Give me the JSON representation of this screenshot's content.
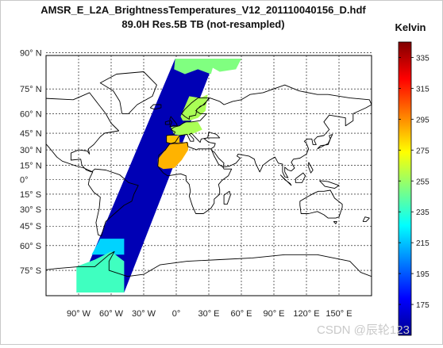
{
  "chart_data": {
    "type": "heatmap",
    "title_lines": [
      "AMSR_E_L2A_BrightnessTemperatures_V12_201110040156_D.hdf",
      "89.0H Res.5B TB (not-resampled)"
    ],
    "map_projection": "Miller-like cylindrical world map with coastlines",
    "lon_range": [
      -120,
      180
    ],
    "lat_range": [
      -90,
      90
    ],
    "grid": true,
    "x_ticks": [
      {
        "value": -90,
        "label": "90° W"
      },
      {
        "value": -60,
        "label": "60° W"
      },
      {
        "value": -30,
        "label": "30° W"
      },
      {
        "value": 0,
        "label": "0°"
      },
      {
        "value": 30,
        "label": "30° E"
      },
      {
        "value": 60,
        "label": "60° E"
      },
      {
        "value": 90,
        "label": "90° E"
      },
      {
        "value": 120,
        "label": "120° E"
      },
      {
        "value": 150,
        "label": "150° E"
      }
    ],
    "y_ticks": [
      {
        "value": 90,
        "label": "90° N"
      },
      {
        "value": 75,
        "label": "75° N"
      },
      {
        "value": 60,
        "label": "60° N"
      },
      {
        "value": 45,
        "label": "45° N"
      },
      {
        "value": 30,
        "label": "30° N"
      },
      {
        "value": 15,
        "label": "15° N"
      },
      {
        "value": 0,
        "label": "0°"
      },
      {
        "value": -15,
        "label": "15° S"
      },
      {
        "value": -30,
        "label": "30° S"
      },
      {
        "value": -45,
        "label": "45° S"
      },
      {
        "value": -60,
        "label": "60° S"
      },
      {
        "value": -75,
        "label": "75° S"
      }
    ],
    "colorbar": {
      "label": "Kelvin",
      "colormap": "jet",
      "range": [
        155,
        345
      ],
      "ticks": [
        175,
        195,
        215,
        235,
        255,
        275,
        295,
        315,
        335
      ]
    },
    "swath": {
      "description": "Single descending AMSR-E swath crossing Atlantic/Europe/Africa",
      "corners_lonlat": {
        "top_left": [
          -1,
          88
        ],
        "top_right": [
          36,
          88
        ],
        "bottom_left": [
          -92,
          -85
        ],
        "bottom_right": [
          -48,
          -85
        ]
      },
      "background_value_K": 165,
      "regions": [
        {
          "name": "polar_ice_north",
          "value_K": 250
        },
        {
          "name": "scandinavia_europe",
          "value_K": 258
        },
        {
          "name": "iberia_north_africa",
          "value_K": 285
        },
        {
          "name": "sahara",
          "value_K": 288
        },
        {
          "name": "southern_ocean_transition",
          "value_K": 218
        },
        {
          "name": "antarctica",
          "value_K": 238
        }
      ]
    }
  },
  "watermark": "CSDN @辰轮123"
}
